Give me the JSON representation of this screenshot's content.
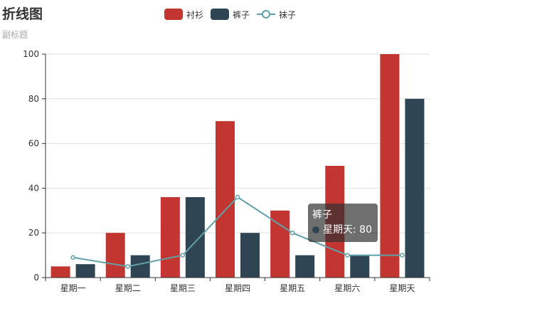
{
  "title": "折线图",
  "subtitle": "副标题",
  "legend": [
    {
      "label": "衬衫",
      "color": "#c23531",
      "kind": "bar"
    },
    {
      "label": "裤子",
      "color": "#2f4554",
      "kind": "bar"
    },
    {
      "label": "袜子",
      "color": "#61a0a8",
      "kind": "line"
    }
  ],
  "tooltip": {
    "series": "裤子",
    "text": "星期天: 80",
    "color": "#2f4554"
  },
  "chart_data": {
    "type": "bar",
    "title": "折线图",
    "subtitle": "副标题",
    "categories": [
      "星期一",
      "星期二",
      "星期三",
      "星期四",
      "星期五",
      "星期六",
      "星期天"
    ],
    "series": [
      {
        "name": "衬衫",
        "type": "bar",
        "color": "#c23531",
        "values": [
          5,
          20,
          36,
          70,
          30,
          50,
          100
        ]
      },
      {
        "name": "裤子",
        "type": "bar",
        "color": "#2f4554",
        "values": [
          6,
          10,
          36,
          20,
          10,
          10,
          80
        ]
      },
      {
        "name": "袜子",
        "type": "line",
        "color": "#61a0a8",
        "values": [
          9,
          5,
          10,
          36,
          20,
          10,
          10
        ]
      }
    ],
    "ylim": [
      0,
      100
    ],
    "yticks": [
      0,
      20,
      40,
      60,
      80,
      100
    ],
    "grid": true,
    "legend_position": "top-center"
  }
}
